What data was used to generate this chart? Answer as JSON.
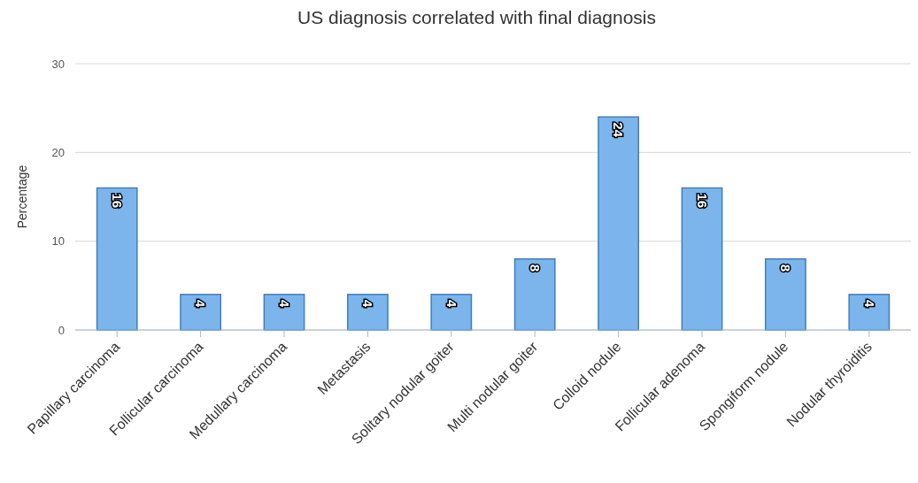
{
  "chart_data": {
    "type": "bar",
    "title": "US diagnosis correlated with final diagnosis",
    "ylabel": "Percentage",
    "categories": [
      "Papillary carcinoma",
      "Follicular carcinoma",
      "Medullary carcinoma",
      "Metastasis",
      "Solitary nodular goiter",
      "Multi nodular goiter",
      "Colloid nodule",
      "Follicular adenoma",
      "Spongiform nodule",
      "Nodular thyroiditis"
    ],
    "values": [
      16,
      4,
      4,
      4,
      4,
      8,
      24,
      16,
      8,
      4
    ],
    "color": "#7cb5ec",
    "ylim": [
      0,
      30
    ],
    "yticks": [
      0,
      10,
      20,
      30
    ],
    "grid": "y",
    "data_labels": true
  }
}
